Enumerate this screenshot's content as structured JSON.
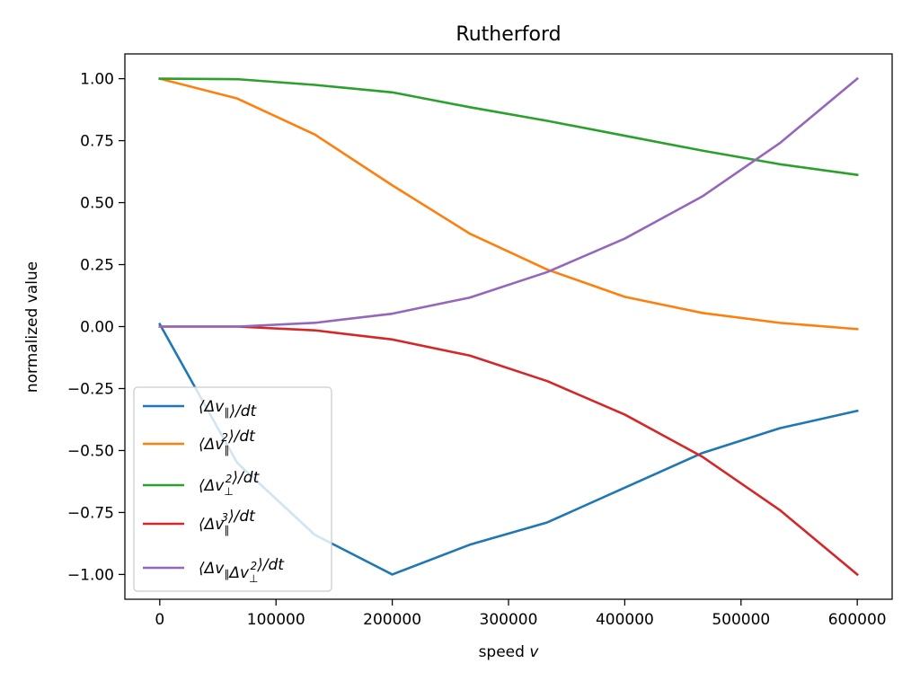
{
  "chart_data": {
    "type": "line",
    "title": "Rutherford",
    "xlabel": "speed v",
    "ylabel": "normalized value",
    "xlim": [
      -30000,
      630000
    ],
    "ylim": [
      -1.1,
      1.1
    ],
    "x_ticks": [
      0,
      100000,
      200000,
      300000,
      400000,
      500000,
      600000
    ],
    "x_tick_labels": [
      "0",
      "100000",
      "200000",
      "300000",
      "400000",
      "500000",
      "600000"
    ],
    "y_ticks": [
      1.0,
      0.75,
      0.5,
      0.25,
      0.0,
      -0.25,
      -0.5,
      -0.75,
      -1.0
    ],
    "y_tick_labels": [
      "1.00",
      "0.75",
      "0.50",
      "0.25",
      "0.00",
      "−0.25",
      "−0.50",
      "−0.75",
      "−1.00"
    ],
    "grid": false,
    "legend_position": "lower-left",
    "x": [
      0,
      66667,
      133333,
      200000,
      266667,
      333333,
      400000,
      466667,
      533333,
      600000
    ],
    "series": [
      {
        "name": "⟨Δv∥⟩/dt",
        "color": "#1f77b4",
        "values": [
          0.01,
          -0.55,
          -0.84,
          -1.0,
          -0.88,
          -0.79,
          -0.65,
          -0.51,
          -0.41,
          -0.34
        ]
      },
      {
        "name": "⟨Δv∥²⟩/dt",
        "color": "#ff7f0e",
        "values": [
          1.0,
          0.92,
          0.775,
          0.57,
          0.375,
          0.23,
          0.12,
          0.055,
          0.015,
          -0.01
        ]
      },
      {
        "name": "⟨Δv⊥²⟩/dt",
        "color": "#2ca02c",
        "values": [
          1.0,
          0.998,
          0.975,
          0.945,
          0.885,
          0.83,
          0.77,
          0.71,
          0.655,
          0.612
        ]
      },
      {
        "name": "⟨Δv∥³⟩/dt",
        "color": "#d62728",
        "values": [
          0.0,
          0.0,
          -0.015,
          -0.052,
          -0.117,
          -0.22,
          -0.355,
          -0.525,
          -0.74,
          -1.0
        ]
      },
      {
        "name": "⟨Δv∥Δv⊥²⟩/dt",
        "color": "#9467bd",
        "values": [
          0.0,
          0.0,
          0.015,
          0.052,
          0.117,
          0.22,
          0.355,
          0.525,
          0.74,
          1.0
        ]
      }
    ]
  }
}
